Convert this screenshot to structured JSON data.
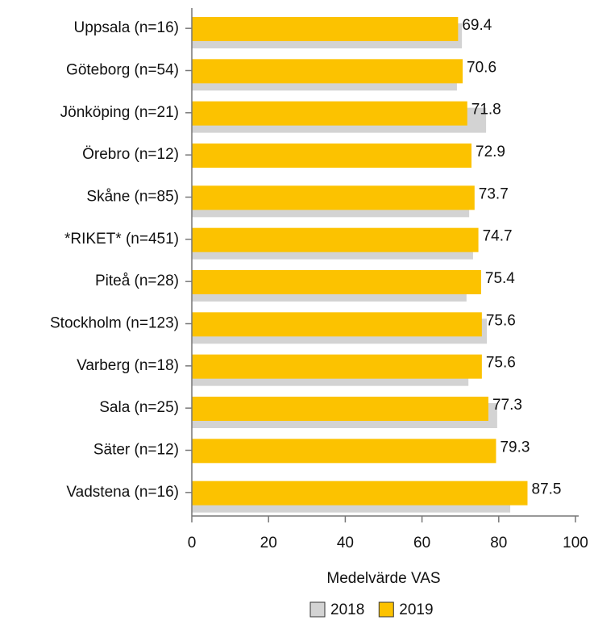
{
  "chart_data": {
    "type": "bar",
    "orientation": "horizontal",
    "categories": [
      "Uppsala (n=16)",
      "Göteborg (n=54)",
      "Jönköping (n=21)",
      "Örebro (n=12)",
      "Skåne (n=85)",
      "*RIKET* (n=451)",
      "Piteå (n=28)",
      "Stockholm (n=123)",
      "Varberg (n=18)",
      "Sala (n=25)",
      "Säter (n=12)",
      "Vadstena (n=16)"
    ],
    "series": [
      {
        "name": "2018",
        "color": "#d3d3d3",
        "values": [
          70.4,
          69.1,
          76.7,
          null,
          72.3,
          73.3,
          71.6,
          76.9,
          72.1,
          79.6,
          null,
          83.0
        ]
      },
      {
        "name": "2019",
        "color": "#fcc200",
        "values": [
          69.4,
          70.6,
          71.8,
          72.9,
          73.7,
          74.7,
          75.4,
          75.6,
          75.6,
          77.3,
          79.3,
          87.5
        ]
      }
    ],
    "xlabel": "Medelvärde VAS",
    "xlim": [
      0,
      100
    ],
    "xticks": [
      0,
      20,
      40,
      60,
      80,
      100
    ],
    "legend": "bottom"
  }
}
